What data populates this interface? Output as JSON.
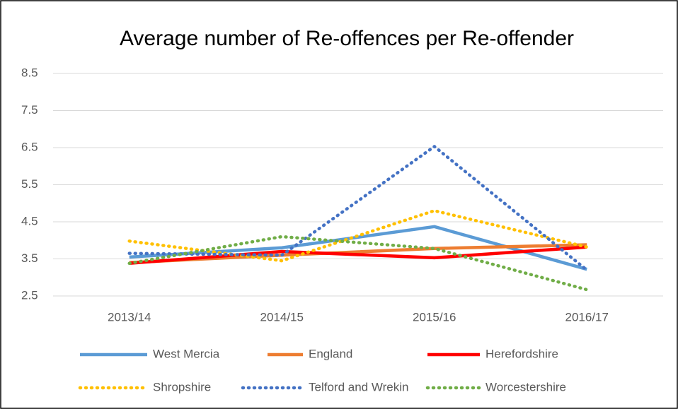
{
  "chart_data": {
    "type": "line",
    "title": "Average number of Re-offences per Re-offender",
    "categories": [
      "2013/14",
      "2014/15",
      "2015/16",
      "2016/17"
    ],
    "series": [
      {
        "name": "West Mercia",
        "color": "#5b9bd5",
        "dash": "solid",
        "values": [
          3.55,
          3.8,
          4.37,
          3.22
        ]
      },
      {
        "name": "England",
        "color": "#ed7d31",
        "dash": "solid",
        "values": [
          3.4,
          3.6,
          3.78,
          3.88
        ]
      },
      {
        "name": "Herefordshire",
        "color": "#ff0000",
        "dash": "solid",
        "values": [
          3.38,
          3.7,
          3.53,
          3.82
        ]
      },
      {
        "name": "Shropshire",
        "color": "#ffc000",
        "dash": "dotted",
        "values": [
          3.98,
          3.45,
          4.8,
          3.82
        ]
      },
      {
        "name": "Telford and Wrekin",
        "color": "#4472c4",
        "dash": "dotted",
        "values": [
          3.65,
          3.6,
          6.53,
          3.2
        ]
      },
      {
        "name": "Worcestershire",
        "color": "#70ad47",
        "dash": "dotted",
        "values": [
          3.38,
          4.1,
          3.78,
          2.67
        ]
      }
    ],
    "ylim": [
      2.5,
      8.5
    ],
    "yticks": [
      2.5,
      3.5,
      4.5,
      5.5,
      6.5,
      7.5,
      8.5
    ],
    "grid": true,
    "legend": "bottom"
  }
}
